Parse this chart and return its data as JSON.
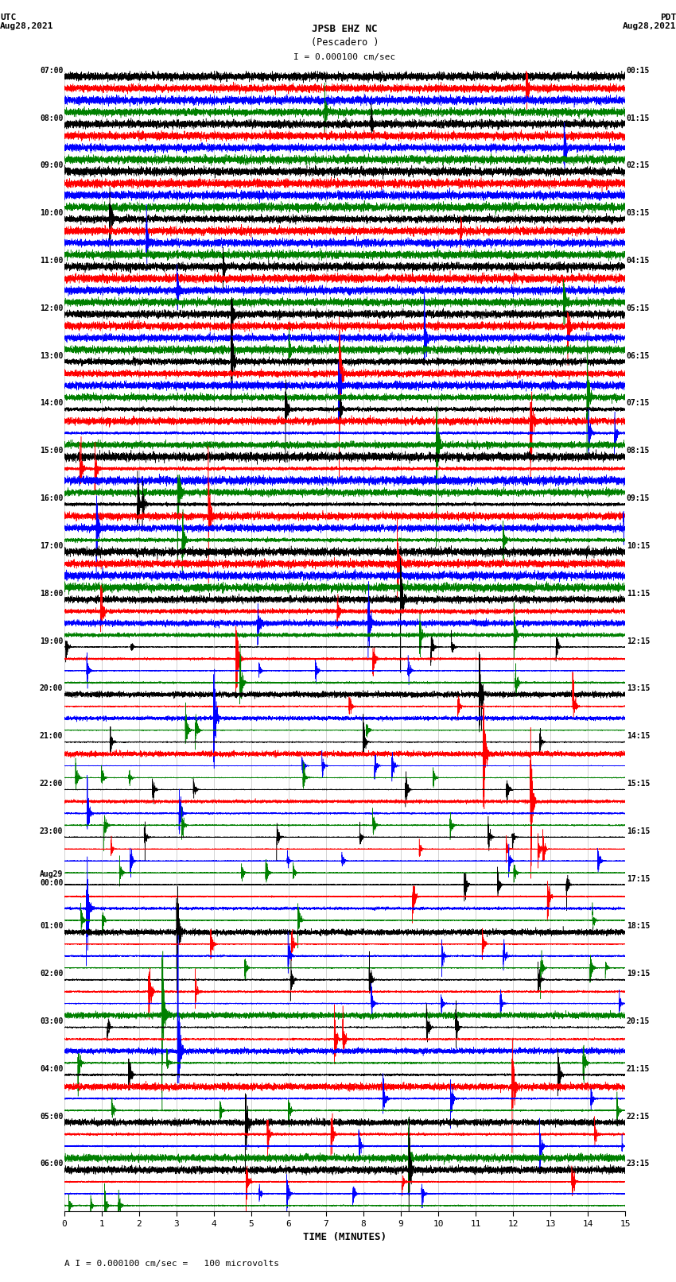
{
  "title_line1": "JPSB EHZ NC",
  "title_line2": "(Pescadero )",
  "scale_text": "I = 0.000100 cm/sec",
  "bottom_text": "A I = 0.000100 cm/sec =   100 microvolts",
  "xlabel": "TIME (MINUTES)",
  "left_label_top": "UTC",
  "left_label_date": "Aug28,2021",
  "right_label_top": "PDT",
  "right_label_date": "Aug28,2021",
  "left_times": [
    "07:00",
    "08:00",
    "09:00",
    "10:00",
    "11:00",
    "12:00",
    "13:00",
    "14:00",
    "15:00",
    "16:00",
    "17:00",
    "18:00",
    "19:00",
    "20:00",
    "21:00",
    "22:00",
    "23:00",
    "Aug29\n00:00",
    "01:00",
    "02:00",
    "03:00",
    "04:00",
    "05:00",
    "06:00"
  ],
  "right_times": [
    "00:15",
    "01:15",
    "02:15",
    "03:15",
    "04:15",
    "05:15",
    "06:15",
    "07:15",
    "08:15",
    "09:15",
    "10:15",
    "11:15",
    "12:15",
    "13:15",
    "14:15",
    "15:15",
    "16:15",
    "17:15",
    "18:15",
    "19:15",
    "20:15",
    "21:15",
    "22:15",
    "23:15"
  ],
  "n_groups": 24,
  "trace_colors_order": [
    "black",
    "red",
    "blue",
    "green"
  ],
  "bg_color": "white",
  "x_ticks": [
    0,
    1,
    2,
    3,
    4,
    5,
    6,
    7,
    8,
    9,
    10,
    11,
    12,
    13,
    14,
    15
  ],
  "x_lim": [
    0,
    15
  ],
  "dpi": 100,
  "fig_width": 8.5,
  "fig_height": 16.13
}
